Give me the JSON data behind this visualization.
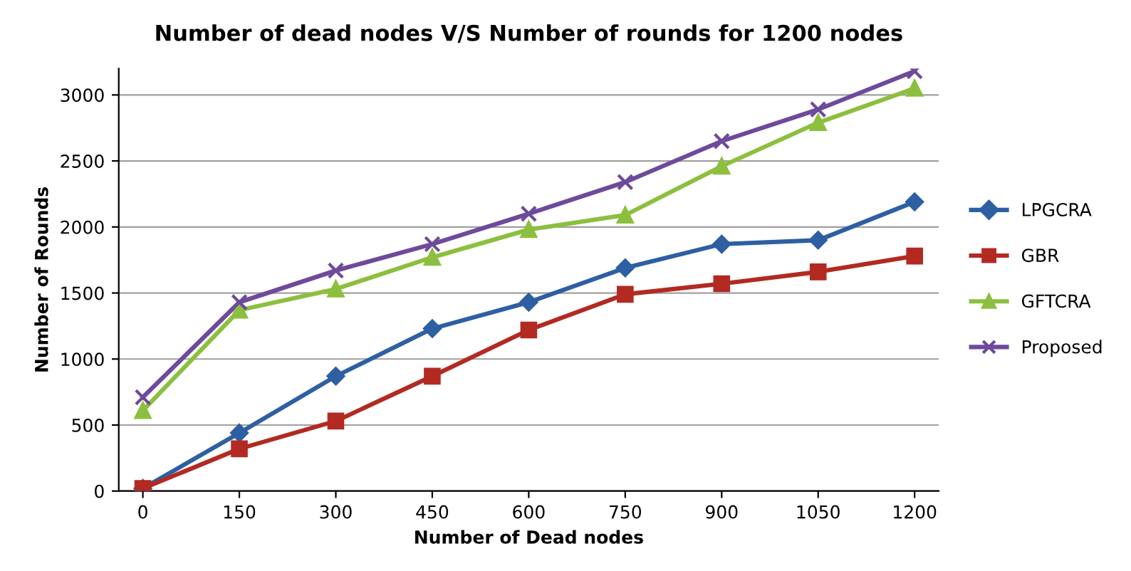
{
  "chart_data": {
    "type": "line",
    "title": "Number of dead nodes V/S Number of rounds for 1200 nodes",
    "xlabel": "Number of Dead nodes",
    "ylabel": "Number of Rounds",
    "categories": [
      "0",
      "150",
      "300",
      "450",
      "600",
      "750",
      "900",
      "1050",
      "1200"
    ],
    "series": [
      {
        "name": "LPGCRA",
        "color": "#2e5fa3",
        "marker": "diamond",
        "values": [
          20,
          440,
          870,
          1230,
          1430,
          1690,
          1870,
          1900,
          2190
        ]
      },
      {
        "name": "GBR",
        "color": "#b22a22",
        "marker": "square",
        "values": [
          20,
          320,
          530,
          870,
          1220,
          1490,
          1570,
          1660,
          1780
        ]
      },
      {
        "name": "GFTCRA",
        "color": "#8cbf3f",
        "marker": "triangle",
        "values": [
          610,
          1370,
          1530,
          1770,
          1980,
          2090,
          2460,
          2790,
          3050
        ]
      },
      {
        "name": "Proposed",
        "color": "#6e4a9b",
        "marker": "cross",
        "values": [
          710,
          1430,
          1670,
          1870,
          2100,
          2340,
          2650,
          2890,
          3180
        ]
      }
    ],
    "ylim": [
      0,
      3200
    ],
    "yticks": [
      0,
      500,
      1000,
      1500,
      2000,
      2500,
      3000
    ],
    "grid": "y",
    "legend": "right",
    "line_style": "solid"
  }
}
